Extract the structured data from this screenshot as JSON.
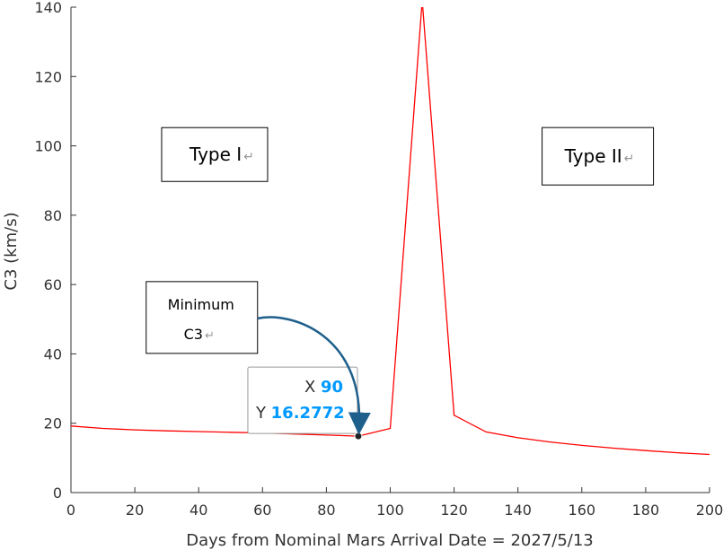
{
  "chart_data": {
    "type": "line",
    "xlabel": "Days from Nominal Mars Arrival Date = 2027/5/13",
    "ylabel": "C3 (km/s)",
    "xlim": [
      0,
      200
    ],
    "ylim": [
      0,
      140
    ],
    "x_ticks": [
      0,
      20,
      40,
      60,
      80,
      100,
      120,
      140,
      160,
      180,
      200
    ],
    "y_ticks": [
      0,
      20,
      40,
      60,
      80,
      100,
      120,
      140
    ],
    "grid": false,
    "series": [
      {
        "color": "#ff0000",
        "x": [
          0,
          10,
          20,
          30,
          40,
          50,
          60,
          70,
          80,
          90,
          100,
          110,
          120,
          130,
          140,
          150,
          160,
          170,
          180,
          190,
          200
        ],
        "y": [
          19.2,
          18.5,
          18.1,
          17.8,
          17.6,
          17.4,
          17.2,
          16.9,
          16.6,
          16.2772,
          18.5,
          142,
          22.3,
          17.5,
          15.8,
          14.6,
          13.6,
          12.8,
          12.1,
          11.5,
          11.0
        ]
      }
    ],
    "annotations": [
      {
        "text": "Type I",
        "mark": "↵",
        "x_center": 45,
        "y_center": 97.5
      },
      {
        "text": "Type II",
        "mark": "↵",
        "x_center": 165,
        "y_center": 97
      },
      {
        "lines": [
          "Minimum",
          "C3"
        ],
        "mark": "↵",
        "x_center": 41,
        "y_center": 50.5
      }
    ],
    "datatip": {
      "x_label": "X",
      "x_value": "90",
      "y_label": "Y",
      "y_value": "16.2772",
      "point": {
        "x": 90,
        "y": 16.2772
      }
    }
  },
  "colors": {
    "line": "#ff0000",
    "datatip_value": "#0099ff",
    "arrow": "#1f5f8b",
    "axis": "#333333"
  }
}
